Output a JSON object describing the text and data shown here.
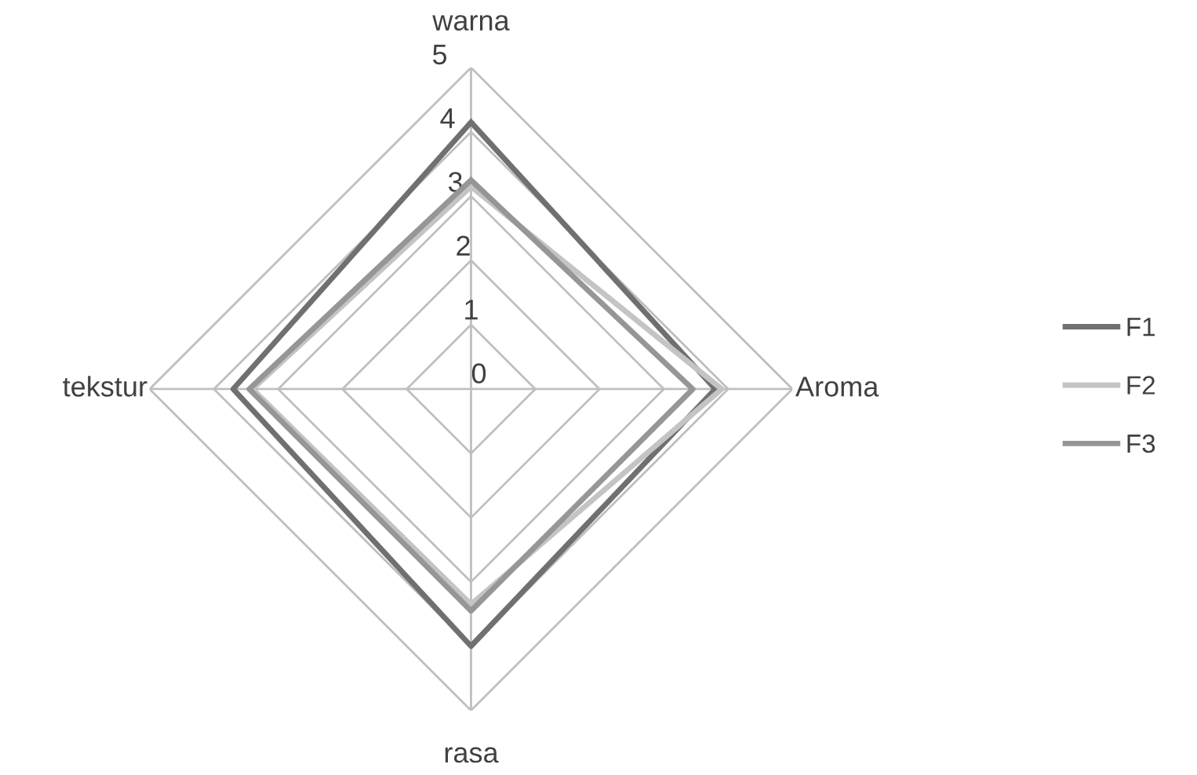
{
  "chart_data": {
    "type": "radar",
    "categories": [
      "warna",
      "Aroma",
      "rasa",
      "tekstur"
    ],
    "series": [
      {
        "name": "F1",
        "color": "#707070",
        "values": [
          4.15,
          3.8,
          4.0,
          3.7
        ]
      },
      {
        "name": "F2",
        "color": "#c4c4c4",
        "values": [
          3.15,
          3.9,
          3.35,
          3.4
        ]
      },
      {
        "name": "F3",
        "color": "#969696",
        "values": [
          3.25,
          3.45,
          3.45,
          3.45
        ]
      }
    ],
    "ylim": [
      0,
      5
    ],
    "yticks": [
      0,
      1,
      2,
      3,
      4,
      5
    ],
    "grid": true,
    "legend": "right"
  }
}
